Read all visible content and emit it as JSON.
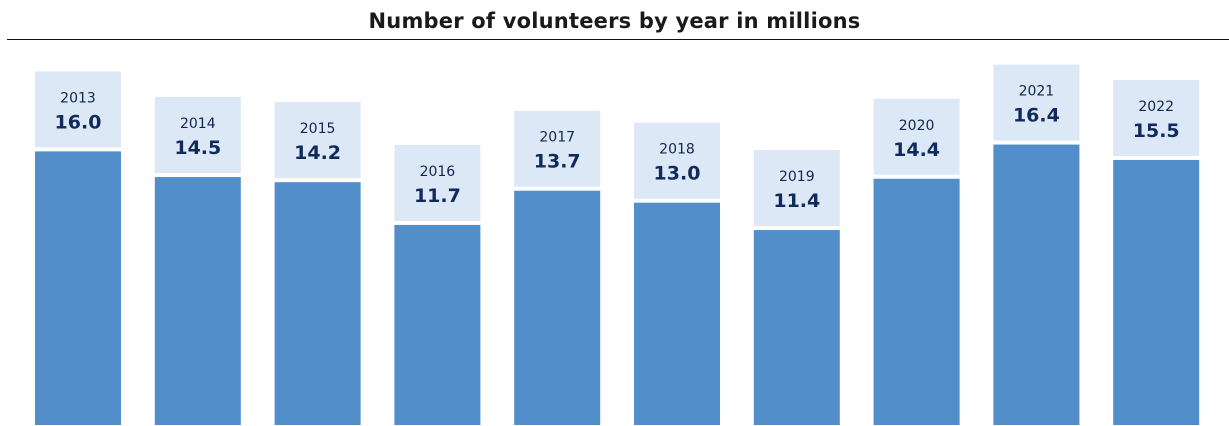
{
  "chart_data": {
    "type": "bar",
    "title": "Number of volunteers by year in millions",
    "xlabel": "",
    "ylabel": "",
    "categories": [
      "2013",
      "2014",
      "2015",
      "2016",
      "2017",
      "2018",
      "2019",
      "2020",
      "2021",
      "2022"
    ],
    "values": [
      16.0,
      14.5,
      14.2,
      11.7,
      13.7,
      13.0,
      11.4,
      14.4,
      16.4,
      15.5
    ],
    "value_labels": [
      "16.0",
      "14.5",
      "14.2",
      "11.7",
      "13.7",
      "13.0",
      "11.4",
      "14.4",
      "16.4",
      "15.5"
    ],
    "ylim": [
      0,
      16.4
    ],
    "grid": false,
    "legend": "none",
    "colors": {
      "bar": "#528ec9",
      "label_box": "#dce8f6",
      "year_text": "#13264a",
      "value_text": "#102a5c",
      "title_text": "#1a1a1a"
    }
  }
}
